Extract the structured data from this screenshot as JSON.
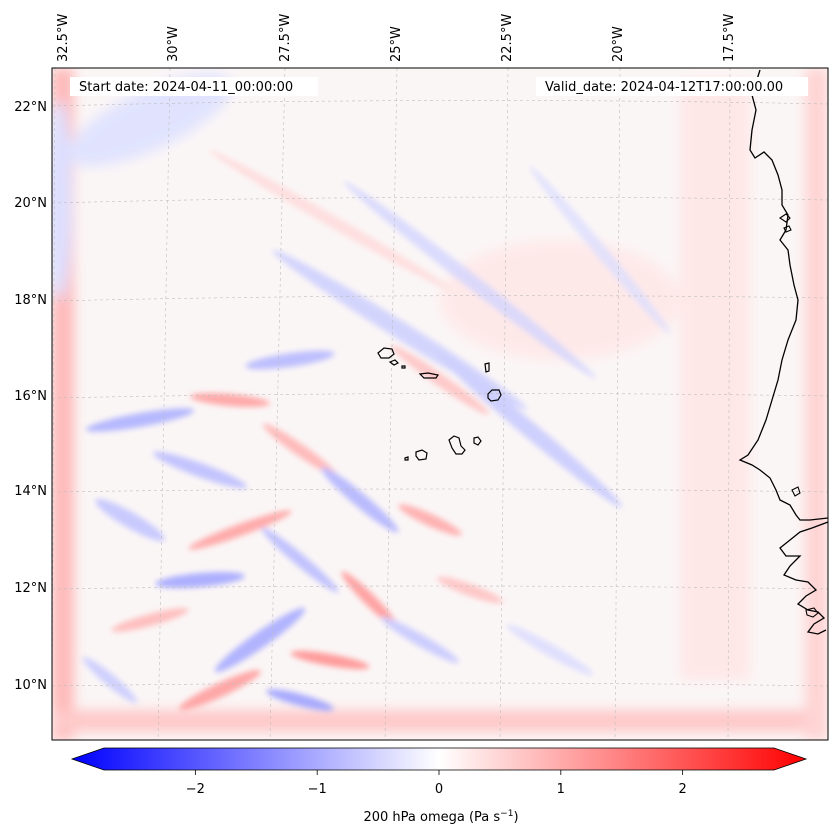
{
  "map": {
    "start_label": "Start date: 2024-04-11_00:00:00",
    "valid_label": "Valid_date: 2024-04-12T17:00:00.00",
    "lon_labels": [
      "32.5°W",
      "30°W",
      "27.5°W",
      "25°W",
      "22.5°W",
      "20°W",
      "17.5°W"
    ],
    "lat_labels": [
      "22°N",
      "20°N",
      "18°N",
      "16°N",
      "14°N",
      "12°N",
      "10°N"
    ],
    "gridlines": true,
    "coastline_color": "#000000",
    "field_colors": {
      "negative": "#0000ff",
      "zero": "#ffffff",
      "positive": "#ff0000"
    }
  },
  "colorbar": {
    "label_text": "200 hPa omega (Pa s",
    "label_exp": "−1",
    "label_close": ")",
    "ticks": [
      "−2",
      "−1",
      "0",
      "1",
      "2"
    ],
    "range": [
      -2.75,
      2.75
    ],
    "extend": "both",
    "colormap": "bwr"
  }
}
